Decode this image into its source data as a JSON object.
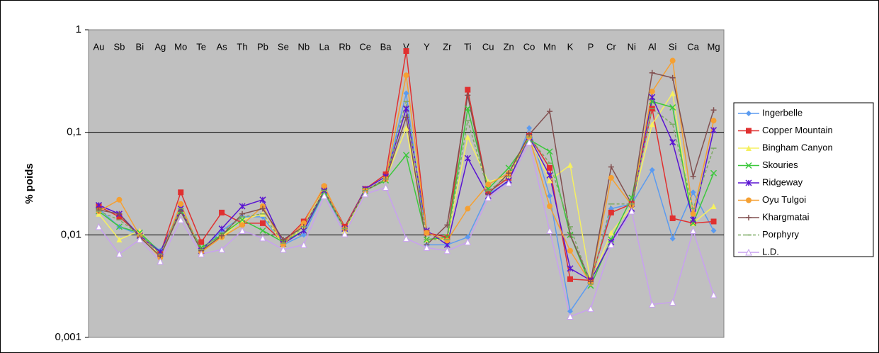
{
  "chart_data": {
    "type": "line",
    "y_label": "% poids",
    "log_scale": true,
    "grid": true,
    "legend": "right",
    "background": "#c0c0c0",
    "categories": [
      "Au",
      "Sb",
      "Bi",
      "Ag",
      "Mo",
      "Te",
      "As",
      "Th",
      "Pb",
      "Se",
      "Nb",
      "La",
      "Rb",
      "Ce",
      "Ba",
      "V",
      "Y",
      "Zr",
      "Ti",
      "Cu",
      "Zn",
      "Co",
      "Mn",
      "K",
      "P",
      "Cr",
      "Ni",
      "Al",
      "Si",
      "Ca",
      "Mg"
    ],
    "ylim": [
      0.001,
      1
    ],
    "yticks": [
      {
        "value": 0.001,
        "label": "0,001"
      },
      {
        "value": 0.01,
        "label": "0,01"
      },
      {
        "value": 0.1,
        "label": "0,1"
      },
      1
    ],
    "series": [
      {
        "name": "Ingerbelle",
        "color": "#5b9bf0",
        "marker": "diamond",
        "values": [
          0.018,
          0.012,
          0.01,
          0.007,
          0.017,
          0.007,
          0.011,
          0.015,
          0.015,
          0.008,
          0.01,
          0.026,
          0.011,
          0.027,
          0.035,
          0.24,
          0.008,
          0.008,
          0.0095,
          0.025,
          0.033,
          0.11,
          0.024,
          0.0018,
          0.0035,
          0.018,
          0.02,
          0.043,
          0.0092,
          0.026,
          0.011
        ]
      },
      {
        "name": "Copper Mountain",
        "color": "#e03030",
        "marker": "square",
        "values": [
          0.019,
          0.015,
          0.01,
          0.0065,
          0.026,
          0.0085,
          0.0165,
          0.013,
          0.013,
          0.0085,
          0.0135,
          0.029,
          0.012,
          0.028,
          0.039,
          0.62,
          0.0105,
          0.0095,
          0.26,
          0.026,
          0.036,
          0.093,
          0.045,
          0.0037,
          0.0036,
          0.0165,
          0.02,
          0.17,
          0.0145,
          0.013,
          0.0135
        ]
      },
      {
        "name": "Bingham Canyon",
        "color": "#f5f060",
        "marker": "triangle",
        "values": [
          0.016,
          0.009,
          0.011,
          0.0062,
          0.018,
          0.007,
          0.0095,
          0.014,
          0.016,
          0.008,
          0.012,
          0.028,
          0.011,
          0.027,
          0.035,
          0.11,
          0.009,
          0.009,
          0.09,
          0.033,
          0.037,
          0.09,
          0.034,
          0.048,
          0.0035,
          0.0105,
          0.019,
          0.12,
          0.24,
          0.013,
          0.019
        ]
      },
      {
        "name": "Skouries",
        "color": "#3cc83c",
        "marker": "x",
        "values": [
          0.017,
          0.012,
          0.0105,
          0.0068,
          0.017,
          0.0075,
          0.01,
          0.014,
          0.011,
          0.0085,
          0.011,
          0.026,
          0.0115,
          0.027,
          0.034,
          0.06,
          0.009,
          0.0095,
          0.17,
          0.028,
          0.045,
          0.085,
          0.065,
          0.01,
          0.0032,
          0.009,
          0.023,
          0.2,
          0.175,
          0.013,
          0.04
        ]
      },
      {
        "name": "Ridgeway",
        "color": "#5a14d2",
        "marker": "star",
        "values": [
          0.0195,
          0.016,
          0.0098,
          0.0068,
          0.018,
          0.007,
          0.0115,
          0.019,
          0.022,
          0.0082,
          0.011,
          0.027,
          0.0115,
          0.028,
          0.037,
          0.17,
          0.011,
          0.008,
          0.056,
          0.024,
          0.034,
          0.09,
          0.038,
          0.0047,
          0.0036,
          0.0085,
          0.018,
          0.22,
          0.08,
          0.014,
          0.105
        ]
      },
      {
        "name": "Oyu Tulgoi",
        "color": "#f5a032",
        "marker": "circle",
        "values": [
          0.017,
          0.022,
          0.0098,
          0.006,
          0.02,
          0.0068,
          0.0095,
          0.0125,
          0.019,
          0.008,
          0.013,
          0.03,
          0.0115,
          0.027,
          0.035,
          0.36,
          0.0105,
          0.0088,
          0.018,
          0.031,
          0.04,
          0.09,
          0.019,
          0.007,
          0.0034,
          0.036,
          0.0195,
          0.25,
          0.5,
          0.016,
          0.13
        ]
      },
      {
        "name": "Khargmatai",
        "color": "#825050",
        "marker": "plus",
        "values": [
          0.0175,
          0.016,
          0.0095,
          0.0062,
          0.017,
          0.007,
          0.0098,
          0.016,
          0.018,
          0.009,
          0.012,
          0.027,
          0.0115,
          0.027,
          0.035,
          0.14,
          0.008,
          0.0125,
          0.23,
          0.025,
          0.04,
          0.095,
          0.16,
          0.01,
          0.0035,
          0.046,
          0.02,
          0.38,
          0.34,
          0.037,
          0.165
        ]
      },
      {
        "name": "Porphyry",
        "color": "#7daa64",
        "marker": "dash",
        "dashed": true,
        "values": [
          0.017,
          0.014,
          0.01,
          0.0065,
          0.018,
          0.0072,
          0.0105,
          0.015,
          0.016,
          0.0083,
          0.012,
          0.027,
          0.0115,
          0.027,
          0.035,
          0.2,
          0.009,
          0.009,
          0.13,
          0.027,
          0.037,
          0.09,
          0.05,
          0.012,
          0.0033,
          0.02,
          0.02,
          0.17,
          0.12,
          0.018,
          0.07
        ]
      },
      {
        "name": "L.D.",
        "color": "#c8a0f0",
        "marker": "open-triangle",
        "values": [
          0.012,
          0.0065,
          0.009,
          0.0055,
          0.014,
          0.0065,
          0.0072,
          0.011,
          0.0093,
          0.0072,
          0.008,
          0.024,
          0.0102,
          0.025,
          0.029,
          0.0092,
          0.0075,
          0.007,
          0.0085,
          0.023,
          0.032,
          0.08,
          0.011,
          0.0016,
          0.0019,
          0.008,
          0.017,
          0.0021,
          0.0022,
          0.011,
          0.0026
        ]
      }
    ]
  }
}
